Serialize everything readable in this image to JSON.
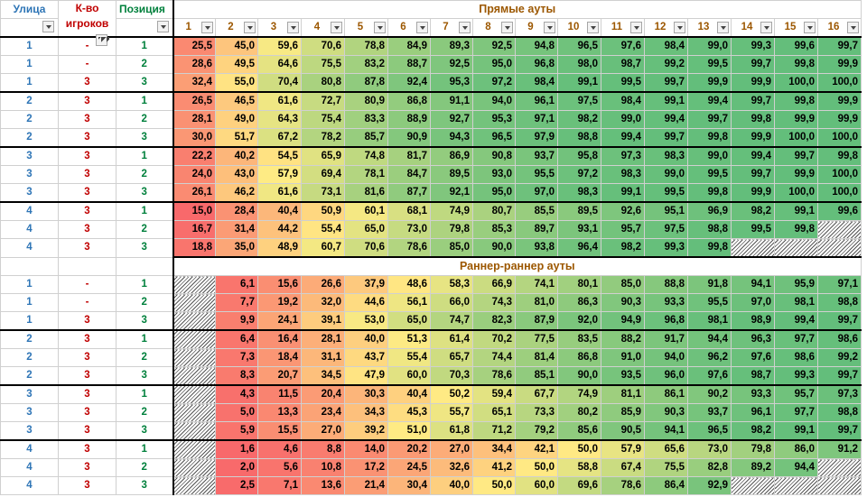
{
  "headers": {
    "street": "Улица",
    "players": "К-во игроков",
    "position": "Позиция",
    "col_numbers": [
      "1",
      "2",
      "3",
      "4",
      "5",
      "6",
      "7",
      "8",
      "9",
      "10",
      "11",
      "12",
      "13",
      "14",
      "15",
      "16"
    ]
  },
  "colors": {
    "low": "#f8696b",
    "mid": "#ffeb84",
    "high": "#63be7b",
    "street_text": "#2e75b6",
    "players_text": "#c00000",
    "position_text": "#00803c",
    "section_text": "#9c5700"
  },
  "sections": [
    {
      "title": "Прямые ауты",
      "rows": [
        {
          "street": "1",
          "players": "-",
          "position": "1",
          "values": [
            "25,5",
            "45,0",
            "59,6",
            "70,6",
            "78,8",
            "84,9",
            "89,3",
            "92,5",
            "94,8",
            "96,5",
            "97,6",
            "98,4",
            "99,0",
            "99,3",
            "99,6",
            "99,7"
          ]
        },
        {
          "street": "1",
          "players": "-",
          "position": "2",
          "values": [
            "28,6",
            "49,5",
            "64,6",
            "75,5",
            "83,2",
            "88,7",
            "92,5",
            "95,0",
            "96,8",
            "98,0",
            "98,7",
            "99,2",
            "99,5",
            "99,7",
            "99,8",
            "99,9"
          ]
        },
        {
          "street": "1",
          "players": "3",
          "position": "3",
          "values": [
            "32,4",
            "55,0",
            "70,4",
            "80,8",
            "87,8",
            "92,4",
            "95,3",
            "97,2",
            "98,4",
            "99,1",
            "99,5",
            "99,7",
            "99,9",
            "99,9",
            "100,0",
            "100,0"
          ]
        },
        {
          "street": "2",
          "players": "3",
          "position": "1",
          "values": [
            "26,5",
            "46,5",
            "61,6",
            "72,7",
            "80,9",
            "86,8",
            "91,1",
            "94,0",
            "96,1",
            "97,5",
            "98,4",
            "99,1",
            "99,4",
            "99,7",
            "99,8",
            "99,9"
          ]
        },
        {
          "street": "2",
          "players": "3",
          "position": "2",
          "values": [
            "28,1",
            "49,0",
            "64,3",
            "75,4",
            "83,3",
            "88,9",
            "92,7",
            "95,3",
            "97,1",
            "98,2",
            "99,0",
            "99,4",
            "99,7",
            "99,8",
            "99,9",
            "99,9"
          ]
        },
        {
          "street": "2",
          "players": "3",
          "position": "3",
          "values": [
            "30,0",
            "51,7",
            "67,2",
            "78,2",
            "85,7",
            "90,9",
            "94,3",
            "96,5",
            "97,9",
            "98,8",
            "99,4",
            "99,7",
            "99,8",
            "99,9",
            "100,0",
            "100,0"
          ]
        },
        {
          "street": "3",
          "players": "3",
          "position": "1",
          "values": [
            "22,2",
            "40,2",
            "54,5",
            "65,9",
            "74,8",
            "81,7",
            "86,9",
            "90,8",
            "93,7",
            "95,8",
            "97,3",
            "98,3",
            "99,0",
            "99,4",
            "99,7",
            "99,8"
          ]
        },
        {
          "street": "3",
          "players": "3",
          "position": "2",
          "values": [
            "24,0",
            "43,0",
            "57,9",
            "69,4",
            "78,1",
            "84,7",
            "89,5",
            "93,0",
            "95,5",
            "97,2",
            "98,3",
            "99,0",
            "99,5",
            "99,7",
            "99,9",
            "100,0"
          ]
        },
        {
          "street": "3",
          "players": "3",
          "position": "3",
          "values": [
            "26,1",
            "46,2",
            "61,6",
            "73,1",
            "81,6",
            "87,7",
            "92,1",
            "95,0",
            "97,0",
            "98,3",
            "99,1",
            "99,5",
            "99,8",
            "99,9",
            "100,0",
            "100,0"
          ]
        },
        {
          "street": "4",
          "players": "3",
          "position": "1",
          "values": [
            "15,0",
            "28,4",
            "40,4",
            "50,9",
            "60,1",
            "68,1",
            "74,9",
            "80,7",
            "85,5",
            "89,5",
            "92,6",
            "95,1",
            "96,9",
            "98,2",
            "99,1",
            "99,6"
          ]
        },
        {
          "street": "4",
          "players": "3",
          "position": "2",
          "values": [
            "16,7",
            "31,4",
            "44,2",
            "55,4",
            "65,0",
            "73,0",
            "79,8",
            "85,3",
            "89,7",
            "93,1",
            "95,7",
            "97,5",
            "98,8",
            "99,5",
            "99,8",
            ""
          ]
        },
        {
          "street": "4",
          "players": "3",
          "position": "3",
          "values": [
            "18,8",
            "35,0",
            "48,9",
            "60,7",
            "70,6",
            "78,6",
            "85,0",
            "90,0",
            "93,8",
            "96,4",
            "98,2",
            "99,3",
            "99,8",
            "",
            "",
            ""
          ]
        }
      ]
    },
    {
      "title": "Раннер-раннер ауты",
      "rows": [
        {
          "street": "1",
          "players": "-",
          "position": "1",
          "values": [
            "",
            "6,1",
            "15,6",
            "26,6",
            "37,9",
            "48,6",
            "58,3",
            "66,9",
            "74,1",
            "80,1",
            "85,0",
            "88,8",
            "91,8",
            "94,1",
            "95,9",
            "97,1"
          ]
        },
        {
          "street": "1",
          "players": "-",
          "position": "2",
          "values": [
            "",
            "7,7",
            "19,2",
            "32,0",
            "44,6",
            "56,1",
            "66,0",
            "74,3",
            "81,0",
            "86,3",
            "90,3",
            "93,3",
            "95,5",
            "97,0",
            "98,1",
            "98,8"
          ]
        },
        {
          "street": "1",
          "players": "3",
          "position": "3",
          "values": [
            "",
            "9,9",
            "24,1",
            "39,1",
            "53,0",
            "65,0",
            "74,7",
            "82,3",
            "87,9",
            "92,0",
            "94,9",
            "96,8",
            "98,1",
            "98,9",
            "99,4",
            "99,7"
          ]
        },
        {
          "street": "2",
          "players": "3",
          "position": "1",
          "values": [
            "",
            "6,4",
            "16,4",
            "28,1",
            "40,0",
            "51,3",
            "61,4",
            "70,2",
            "77,5",
            "83,5",
            "88,2",
            "91,7",
            "94,4",
            "96,3",
            "97,7",
            "98,6"
          ]
        },
        {
          "street": "2",
          "players": "3",
          "position": "2",
          "values": [
            "",
            "7,3",
            "18,4",
            "31,1",
            "43,7",
            "55,4",
            "65,7",
            "74,4",
            "81,4",
            "86,8",
            "91,0",
            "94,0",
            "96,2",
            "97,6",
            "98,6",
            "99,2"
          ]
        },
        {
          "street": "2",
          "players": "3",
          "position": "3",
          "values": [
            "",
            "8,3",
            "20,7",
            "34,5",
            "47,9",
            "60,0",
            "70,3",
            "78,6",
            "85,1",
            "90,0",
            "93,5",
            "96,0",
            "97,6",
            "98,7",
            "99,3",
            "99,7"
          ]
        },
        {
          "street": "3",
          "players": "3",
          "position": "1",
          "values": [
            "",
            "4,3",
            "11,5",
            "20,4",
            "30,3",
            "40,4",
            "50,2",
            "59,4",
            "67,7",
            "74,9",
            "81,1",
            "86,1",
            "90,2",
            "93,3",
            "95,7",
            "97,3"
          ]
        },
        {
          "street": "3",
          "players": "3",
          "position": "2",
          "values": [
            "",
            "5,0",
            "13,3",
            "23,4",
            "34,3",
            "45,3",
            "55,7",
            "65,1",
            "73,3",
            "80,2",
            "85,9",
            "90,3",
            "93,7",
            "96,1",
            "97,7",
            "98,8"
          ]
        },
        {
          "street": "3",
          "players": "3",
          "position": "3",
          "values": [
            "",
            "5,9",
            "15,5",
            "27,0",
            "39,2",
            "51,0",
            "61,8",
            "71,2",
            "79,2",
            "85,6",
            "90,5",
            "94,1",
            "96,5",
            "98,2",
            "99,1",
            "99,7"
          ]
        },
        {
          "street": "4",
          "players": "3",
          "position": "1",
          "values": [
            "",
            "1,6",
            "4,6",
            "8,8",
            "14,0",
            "20,2",
            "27,0",
            "34,4",
            "42,1",
            "50,0",
            "57,9",
            "65,6",
            "73,0",
            "79,8",
            "86,0",
            "91,2"
          ]
        },
        {
          "street": "4",
          "players": "3",
          "position": "2",
          "values": [
            "",
            "2,0",
            "5,6",
            "10,8",
            "17,2",
            "24,5",
            "32,6",
            "41,2",
            "50,0",
            "58,8",
            "67,4",
            "75,5",
            "82,8",
            "89,2",
            "94,4",
            ""
          ]
        },
        {
          "street": "4",
          "players": "3",
          "position": "3",
          "values": [
            "",
            "2,5",
            "7,1",
            "13,6",
            "21,4",
            "30,4",
            "40,0",
            "50,0",
            "60,0",
            "69,6",
            "78,6",
            "86,4",
            "92,9",
            "",
            "",
            ""
          ]
        }
      ]
    }
  ]
}
